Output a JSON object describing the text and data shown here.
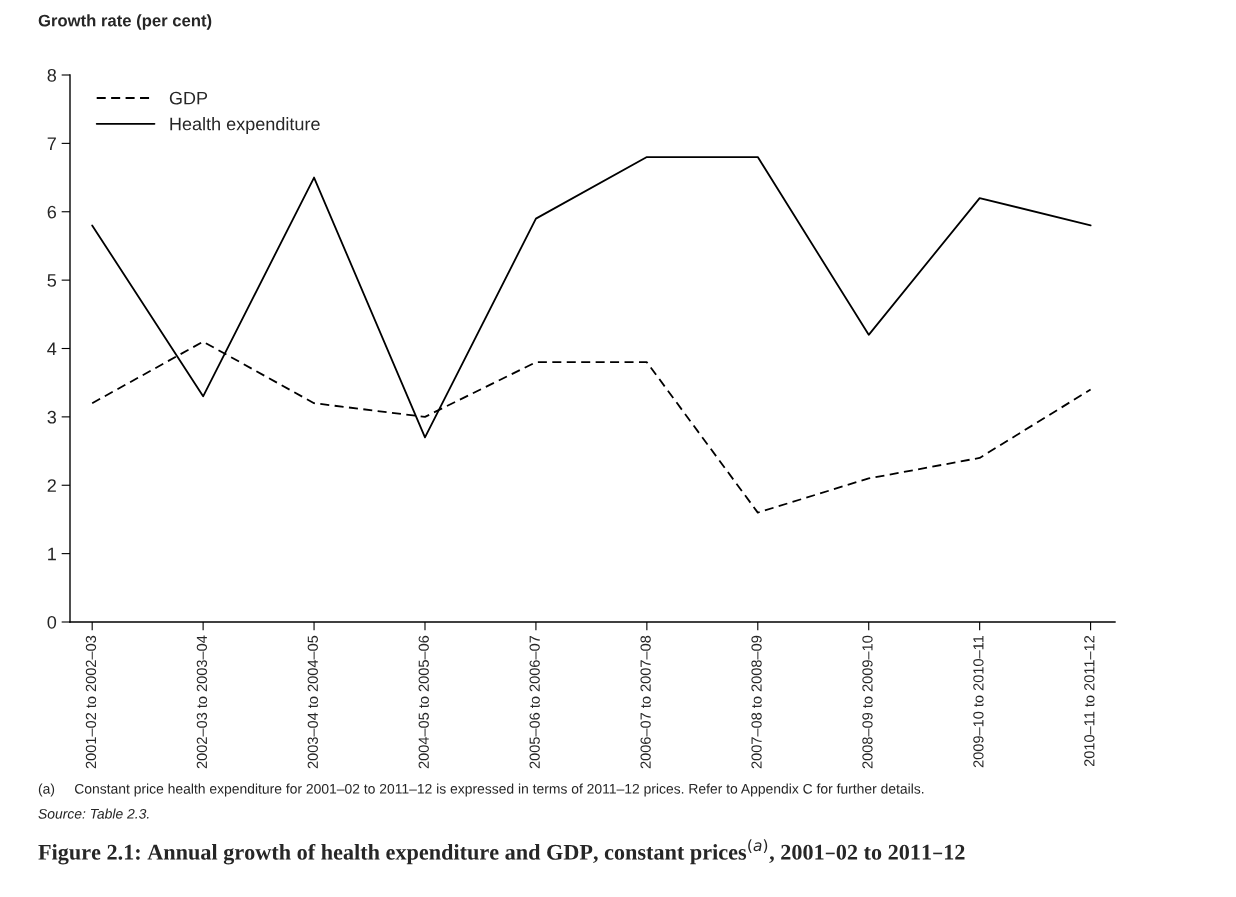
{
  "chart_data": {
    "type": "line",
    "title": "Figure 2.1: Annual growth of health expenditure and GDP, constant prices$^{(a)}$, 2001–02 to 2011–12",
    "ylabel": "Growth rate (per cent)",
    "categories": [
      "2001–02 to 2002–03",
      "2002–03 to 2003–04",
      "2003–04 to 2004–05",
      "2004–05 to 2005–06",
      "2005–06 to 2006–07",
      "2006–07 to 2007–08",
      "2007–08 to 2008–09",
      "2008–09 to 2009–10",
      "2009–10 to 2010–11",
      "2010–11 to 2011–12"
    ],
    "series": [
      {
        "name": "GDP",
        "color": "#000000",
        "line_style": "dashed",
        "values": [
          3.2,
          4.1,
          3.2,
          3.0,
          3.8,
          3.8,
          1.6,
          2.1,
          2.4,
          3.4
        ]
      },
      {
        "name": "Health expenditure",
        "color": "#000000",
        "line_style": "solid",
        "values": [
          5.8,
          3.3,
          6.5,
          2.7,
          5.9,
          6.8,
          6.8,
          4.2,
          6.2,
          5.8
        ]
      }
    ],
    "ylim": [
      0,
      8
    ],
    "yticks": [
      0,
      1,
      2,
      3,
      4,
      5,
      6,
      7,
      8
    ],
    "grid": false,
    "legend": "top left",
    "marker": "none",
    "annotations": [
      "(a)     Constant price health expenditure for 2001–02 to 2011–12 is expressed in terms of 2011–12 prices. Refer to Appendix C for further details.",
      "Source: Table 2.3."
    ]
  }
}
